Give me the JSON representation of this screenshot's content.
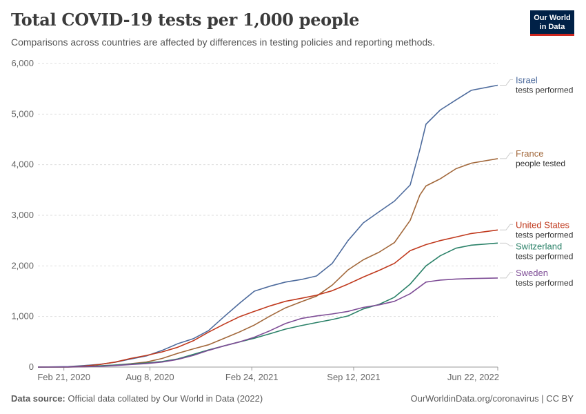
{
  "header": {
    "title": "Total COVID-19 tests per 1,000 people",
    "subtitle": "Comparisons across countries are affected by differences in testing policies and reporting methods.",
    "logo_line1": "Our World",
    "logo_line2": "in Data"
  },
  "footer": {
    "source_label": "Data source:",
    "source_text": "Official data collated by Our World in Data (2022)",
    "credit": "OurWorldinData.org/coronavirus | CC BY"
  },
  "chart_data": {
    "type": "line",
    "ylim": [
      0,
      6000
    ],
    "yticks": [
      0,
      1000,
      2000,
      3000,
      4000,
      5000,
      6000
    ],
    "ytick_labels": [
      "0",
      "1,000",
      "2,000",
      "3,000",
      "4,000",
      "5,000",
      "6,000"
    ],
    "xlim": [
      "2020-01-01",
      "2022-06-22"
    ],
    "xticks": [
      "2020-02-21",
      "2020-08-08",
      "2021-02-24",
      "2021-09-12",
      "2022-06-22"
    ],
    "xtick_labels": [
      "Feb 21, 2020",
      "Aug 8, 2020",
      "Feb 24, 2021",
      "Sep 12, 2021",
      "Jun 22, 2022"
    ],
    "grid": "horizontal dashed",
    "series": [
      {
        "name": "Israel",
        "sublabel": "tests performed",
        "color": "#4c6a9c",
        "points": [
          [
            "2020-01-01",
            0
          ],
          [
            "2020-03-01",
            10
          ],
          [
            "2020-04-01",
            30
          ],
          [
            "2020-05-01",
            55
          ],
          [
            "2020-06-01",
            95
          ],
          [
            "2020-07-01",
            160
          ],
          [
            "2020-08-01",
            220
          ],
          [
            "2020-09-01",
            330
          ],
          [
            "2020-10-01",
            460
          ],
          [
            "2020-11-01",
            560
          ],
          [
            "2020-12-01",
            720
          ],
          [
            "2021-01-01",
            1000
          ],
          [
            "2021-02-01",
            1270
          ],
          [
            "2021-03-01",
            1500
          ],
          [
            "2021-04-01",
            1600
          ],
          [
            "2021-05-01",
            1680
          ],
          [
            "2021-06-01",
            1730
          ],
          [
            "2021-07-01",
            1800
          ],
          [
            "2021-08-01",
            2050
          ],
          [
            "2021-09-01",
            2500
          ],
          [
            "2021-10-01",
            2850
          ],
          [
            "2021-11-01",
            3070
          ],
          [
            "2021-12-01",
            3280
          ],
          [
            "2022-01-01",
            3600
          ],
          [
            "2022-01-20",
            4300
          ],
          [
            "2022-02-01",
            4800
          ],
          [
            "2022-03-01",
            5080
          ],
          [
            "2022-04-01",
            5280
          ],
          [
            "2022-05-01",
            5470
          ],
          [
            "2022-06-22",
            5570
          ]
        ]
      },
      {
        "name": "France",
        "sublabel": "people tested",
        "color": "#a2683b",
        "points": [
          [
            "2020-01-01",
            0
          ],
          [
            "2020-03-01",
            0
          ],
          [
            "2020-04-01",
            5
          ],
          [
            "2020-05-01",
            20
          ],
          [
            "2020-06-01",
            40
          ],
          [
            "2020-07-01",
            65
          ],
          [
            "2020-08-01",
            100
          ],
          [
            "2020-09-01",
            170
          ],
          [
            "2020-10-01",
            270
          ],
          [
            "2020-11-01",
            360
          ],
          [
            "2020-12-01",
            440
          ],
          [
            "2021-01-01",
            570
          ],
          [
            "2021-02-01",
            700
          ],
          [
            "2021-03-01",
            830
          ],
          [
            "2021-04-01",
            1010
          ],
          [
            "2021-05-01",
            1170
          ],
          [
            "2021-06-01",
            1290
          ],
          [
            "2021-07-01",
            1400
          ],
          [
            "2021-08-01",
            1620
          ],
          [
            "2021-09-01",
            1920
          ],
          [
            "2021-10-01",
            2120
          ],
          [
            "2021-11-01",
            2270
          ],
          [
            "2021-12-01",
            2460
          ],
          [
            "2022-01-01",
            2900
          ],
          [
            "2022-01-20",
            3400
          ],
          [
            "2022-02-01",
            3580
          ],
          [
            "2022-03-01",
            3720
          ],
          [
            "2022-04-01",
            3920
          ],
          [
            "2022-05-01",
            4030
          ],
          [
            "2022-06-22",
            4120
          ]
        ]
      },
      {
        "name": "United States",
        "sublabel": "tests performed",
        "color": "#c0391d",
        "points": [
          [
            "2020-01-01",
            0
          ],
          [
            "2020-03-01",
            3
          ],
          [
            "2020-04-01",
            20
          ],
          [
            "2020-05-01",
            50
          ],
          [
            "2020-06-01",
            100
          ],
          [
            "2020-07-01",
            170
          ],
          [
            "2020-08-01",
            230
          ],
          [
            "2020-09-01",
            300
          ],
          [
            "2020-10-01",
            390
          ],
          [
            "2020-11-01",
            520
          ],
          [
            "2020-12-01",
            690
          ],
          [
            "2021-01-01",
            850
          ],
          [
            "2021-02-01",
            1000
          ],
          [
            "2021-03-01",
            1100
          ],
          [
            "2021-04-01",
            1210
          ],
          [
            "2021-05-01",
            1300
          ],
          [
            "2021-06-01",
            1360
          ],
          [
            "2021-07-01",
            1420
          ],
          [
            "2021-08-01",
            1510
          ],
          [
            "2021-09-01",
            1640
          ],
          [
            "2021-10-01",
            1780
          ],
          [
            "2021-11-01",
            1910
          ],
          [
            "2021-12-01",
            2050
          ],
          [
            "2022-01-01",
            2300
          ],
          [
            "2022-02-01",
            2420
          ],
          [
            "2022-03-01",
            2500
          ],
          [
            "2022-04-01",
            2570
          ],
          [
            "2022-05-01",
            2640
          ],
          [
            "2022-06-22",
            2710
          ]
        ]
      },
      {
        "name": "Switzerland",
        "sublabel": "tests performed",
        "color": "#2a8168",
        "points": [
          [
            "2020-01-01",
            0
          ],
          [
            "2020-03-01",
            3
          ],
          [
            "2020-04-01",
            10
          ],
          [
            "2020-05-01",
            25
          ],
          [
            "2020-06-01",
            40
          ],
          [
            "2020-07-01",
            60
          ],
          [
            "2020-08-01",
            80
          ],
          [
            "2020-09-01",
            110
          ],
          [
            "2020-10-01",
            160
          ],
          [
            "2020-11-01",
            250
          ],
          [
            "2020-12-01",
            340
          ],
          [
            "2021-01-01",
            420
          ],
          [
            "2021-02-01",
            500
          ],
          [
            "2021-03-01",
            570
          ],
          [
            "2021-04-01",
            660
          ],
          [
            "2021-05-01",
            750
          ],
          [
            "2021-06-01",
            820
          ],
          [
            "2021-07-01",
            880
          ],
          [
            "2021-08-01",
            940
          ],
          [
            "2021-09-01",
            1010
          ],
          [
            "2021-10-01",
            1150
          ],
          [
            "2021-11-01",
            1240
          ],
          [
            "2021-12-01",
            1380
          ],
          [
            "2022-01-01",
            1640
          ],
          [
            "2022-02-01",
            2000
          ],
          [
            "2022-03-01",
            2200
          ],
          [
            "2022-04-01",
            2350
          ],
          [
            "2022-05-01",
            2410
          ],
          [
            "2022-06-22",
            2450
          ]
        ]
      },
      {
        "name": "Sweden",
        "sublabel": "tests performed",
        "color": "#7e4d96",
        "points": [
          [
            "2020-01-01",
            0
          ],
          [
            "2020-03-01",
            3
          ],
          [
            "2020-04-01",
            8
          ],
          [
            "2020-05-01",
            15
          ],
          [
            "2020-06-01",
            30
          ],
          [
            "2020-07-01",
            50
          ],
          [
            "2020-08-01",
            70
          ],
          [
            "2020-09-01",
            100
          ],
          [
            "2020-10-01",
            150
          ],
          [
            "2020-11-01",
            230
          ],
          [
            "2020-12-01",
            330
          ],
          [
            "2021-01-01",
            420
          ],
          [
            "2021-02-01",
            500
          ],
          [
            "2021-03-01",
            590
          ],
          [
            "2021-04-01",
            720
          ],
          [
            "2021-05-01",
            860
          ],
          [
            "2021-06-01",
            960
          ],
          [
            "2021-07-01",
            1010
          ],
          [
            "2021-08-01",
            1050
          ],
          [
            "2021-09-01",
            1100
          ],
          [
            "2021-10-01",
            1180
          ],
          [
            "2021-11-01",
            1230
          ],
          [
            "2021-12-01",
            1300
          ],
          [
            "2022-01-01",
            1450
          ],
          [
            "2022-02-01",
            1680
          ],
          [
            "2022-03-01",
            1720
          ],
          [
            "2022-04-01",
            1740
          ],
          [
            "2022-05-01",
            1750
          ],
          [
            "2022-06-22",
            1760
          ]
        ]
      }
    ]
  }
}
